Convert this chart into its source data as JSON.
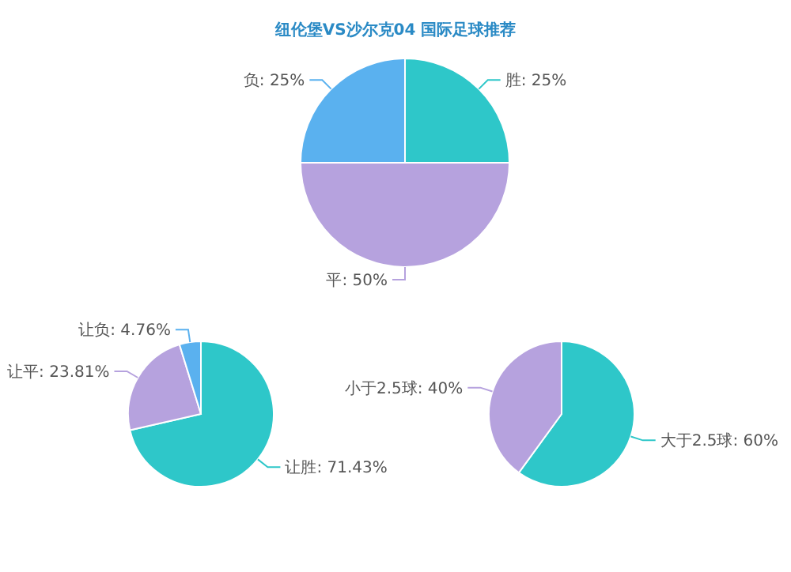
{
  "chart_data": [
    {
      "type": "pie",
      "title": "纽伦堡VS沙尔克04 国际足球推荐",
      "categories": [
        "胜",
        "平",
        "负"
      ],
      "values": [
        25,
        50,
        25
      ],
      "value_labels": [
        "25%",
        "50%",
        "25%"
      ],
      "colors": [
        "#2ec7c9",
        "#b6a2de",
        "#5ab1ef"
      ],
      "legend": false
    },
    {
      "type": "pie",
      "categories": [
        "让胜",
        "让平",
        "让负"
      ],
      "values": [
        71.43,
        23.81,
        4.76
      ],
      "value_labels": [
        "71.43%",
        "23.81%",
        "4.76%"
      ],
      "colors": [
        "#2ec7c9",
        "#b6a2de",
        "#5ab1ef"
      ],
      "legend": false
    },
    {
      "type": "pie",
      "categories": [
        "大于2.5球",
        "小于2.5球"
      ],
      "values": [
        60,
        40
      ],
      "value_labels": [
        "60%",
        "40%"
      ],
      "colors": [
        "#2ec7c9",
        "#b6a2de"
      ],
      "legend": false
    }
  ]
}
